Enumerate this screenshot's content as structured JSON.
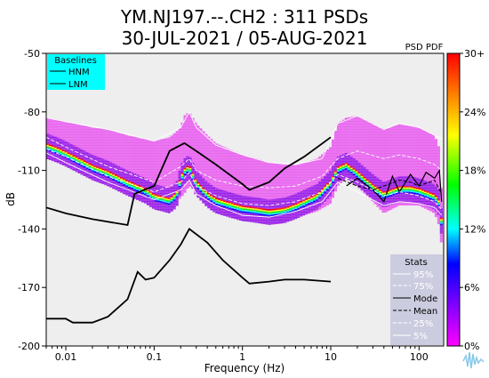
{
  "chart_data": {
    "type": "heatmap",
    "title_line1": "YM.NJ197.--.CH2 : 311 PSDs",
    "title_line2": "30-JUL-2021 / 05-AUG-2021",
    "xlabel": "Frequency (Hz)",
    "ylabel": "dB",
    "x_scale": "log",
    "xlim": [
      0.006,
      190
    ],
    "ylim": [
      -200,
      -50
    ],
    "x_ticks": [
      0.01,
      0.1,
      1,
      10,
      100
    ],
    "x_tick_labels": [
      "0.01",
      "0.1",
      "1",
      "10",
      "100"
    ],
    "y_ticks": [
      -50,
      -80,
      -110,
      -140,
      -170,
      -200
    ],
    "y_tick_labels": [
      "-50",
      "-80",
      "-110",
      "-140",
      "-170",
      "-200"
    ],
    "plot_background": "#eeeeee",
    "pdf_label": "PSD PDF",
    "colorbar": {
      "ticks": [
        30,
        24,
        18,
        12,
        6,
        0
      ],
      "tick_labels": [
        "30+",
        "24%",
        "18%",
        "12%",
        "6%",
        "0%"
      ],
      "colors": [
        "#ff0000",
        "#ff8000",
        "#ffff00",
        "#00ff00",
        "#00ffff",
        "#0000ff",
        "#8000ff",
        "#ff00ff"
      ]
    },
    "baselines_legend": {
      "title": "Baselines",
      "entries": [
        "HNM",
        "LNM"
      ],
      "background": "#00ffff"
    },
    "stats_legend": {
      "title": "Stats",
      "entries": [
        "95%",
        "75%",
        "Mode",
        "Mean",
        "25%",
        "5%"
      ],
      "background": "#cccce0"
    },
    "series": [
      {
        "name": "HNM",
        "x": [
          0.006,
          0.01,
          0.02,
          0.05,
          0.06,
          0.1,
          0.15,
          0.22,
          0.3,
          0.5,
          1,
          1.2,
          2,
          3,
          5,
          10
        ],
        "y": [
          -129,
          -132,
          -135,
          -138,
          -122,
          -118,
          -100,
          -96,
          -100,
          -107,
          -117,
          -120,
          -116,
          -109,
          -103,
          -93
        ]
      },
      {
        "name": "LNM",
        "x": [
          0.006,
          0.01,
          0.012,
          0.02,
          0.03,
          0.05,
          0.065,
          0.08,
          0.1,
          0.15,
          0.2,
          0.25,
          0.4,
          0.6,
          1,
          1.2,
          2,
          3,
          5,
          10
        ],
        "y": [
          -186,
          -186,
          -188,
          -188,
          -185,
          -176,
          -162,
          -166,
          -165,
          -156,
          -148,
          -140,
          -147,
          -156,
          -165,
          -168,
          -167,
          -166,
          -166,
          -167
        ]
      },
      {
        "name": "Mode",
        "x": [
          15,
          20,
          30,
          40,
          50,
          60,
          80,
          100,
          120,
          150,
          170,
          180
        ],
        "y": [
          -118,
          -114,
          -120,
          -126,
          -113,
          -121,
          -112,
          -118,
          -111,
          -114,
          -110,
          -126
        ]
      },
      {
        "name": "Mean",
        "x": [
          12,
          20,
          30,
          40,
          60,
          80,
          100,
          150,
          180
        ],
        "y": [
          -114,
          -118,
          -120,
          -118,
          -115,
          -116,
          -118,
          -115,
          -122
        ]
      },
      {
        "name": "95%",
        "x": [
          0.006,
          0.01,
          0.03,
          0.1,
          0.2,
          0.25,
          0.3,
          0.5,
          1,
          2,
          4,
          8,
          12,
          20,
          40,
          60,
          100,
          150,
          180
        ],
        "y": [
          -83,
          -85,
          -89,
          -95,
          -88,
          -80,
          -88,
          -97,
          -102,
          -106,
          -107,
          -104,
          -86,
          -82,
          -89,
          -86,
          -88,
          -92,
          -94
        ]
      },
      {
        "name": "75%",
        "x": [
          0.006,
          0.01,
          0.03,
          0.1,
          0.2,
          0.25,
          0.3,
          0.5,
          1,
          2,
          4,
          8,
          12,
          20,
          40,
          60,
          100,
          150,
          180
        ],
        "y": [
          -93,
          -98,
          -108,
          -116,
          -108,
          -104,
          -110,
          -115,
          -118,
          -119,
          -118,
          -113,
          -104,
          -100,
          -104,
          -102,
          -104,
          -107,
          -110
        ]
      },
      {
        "name": "25%",
        "x": [
          0.006,
          0.01,
          0.03,
          0.1,
          0.2,
          0.25,
          0.3,
          0.5,
          1,
          2,
          4,
          8,
          12,
          20,
          40,
          60,
          100,
          150,
          180
        ],
        "y": [
          -99,
          -103,
          -113,
          -121,
          -116,
          -111,
          -118,
          -123,
          -127,
          -128,
          -126,
          -121,
          -112,
          -116,
          -123,
          -121,
          -123,
          -126,
          -130
        ]
      },
      {
        "name": "5%",
        "x": [
          0.006,
          0.01,
          0.03,
          0.1,
          0.2,
          0.25,
          0.3,
          0.5,
          1,
          2,
          4,
          8,
          12,
          20,
          40,
          60,
          100,
          150,
          180
        ],
        "y": [
          -101,
          -106,
          -116,
          -125,
          -120,
          -115,
          -122,
          -128,
          -133,
          -134,
          -131,
          -126,
          -116,
          -121,
          -128,
          -126,
          -127,
          -129,
          -133
        ]
      }
    ],
    "pdf_bands": {
      "x": [
        0.006,
        0.008,
        0.01,
        0.02,
        0.03,
        0.05,
        0.08,
        0.1,
        0.15,
        0.18,
        0.2,
        0.22,
        0.25,
        0.3,
        0.4,
        0.5,
        0.7,
        1,
        1.5,
        2,
        3,
        4,
        5,
        7,
        10,
        12,
        15,
        20,
        30,
        40,
        60,
        80,
        100,
        150,
        175,
        185
      ],
      "upper": [
        -83,
        -84,
        -85,
        -88,
        -89,
        -92,
        -94,
        -95,
        -93,
        -90,
        -88,
        -82,
        -80,
        -86,
        -92,
        -96,
        -99,
        -102,
        -104,
        -106,
        -107,
        -107,
        -106,
        -104,
        -98,
        -86,
        -83,
        -82,
        -86,
        -89,
        -86,
        -87,
        -88,
        -92,
        -100,
        -150
      ],
      "lower": [
        -104,
        -106,
        -108,
        -114,
        -118,
        -122,
        -126,
        -128,
        -127,
        -126,
        -124,
        -122,
        -118,
        -121,
        -126,
        -129,
        -131,
        -134,
        -135,
        -136,
        -135,
        -134,
        -133,
        -131,
        -127,
        -118,
        -114,
        -118,
        -126,
        -132,
        -128,
        -128,
        -128,
        -132,
        -140,
        -158
      ],
      "ridge": [
        -98,
        -100,
        -102,
        -109,
        -112,
        -117,
        -121,
        -124,
        -126,
        -123,
        -115,
        -111,
        -109,
        -117,
        -123,
        -126,
        -128,
        -130,
        -131,
        -132,
        -131,
        -129,
        -127,
        -124,
        -117,
        -110,
        -108,
        -112,
        -119,
        -123,
        -120,
        -120,
        -121,
        -124,
        -128,
        -150
      ]
    },
    "pdf_ridge_colors": [
      "#ff0000",
      "#ffff00",
      "#00ff00",
      "#00ffff",
      "#0000ff"
    ]
  }
}
